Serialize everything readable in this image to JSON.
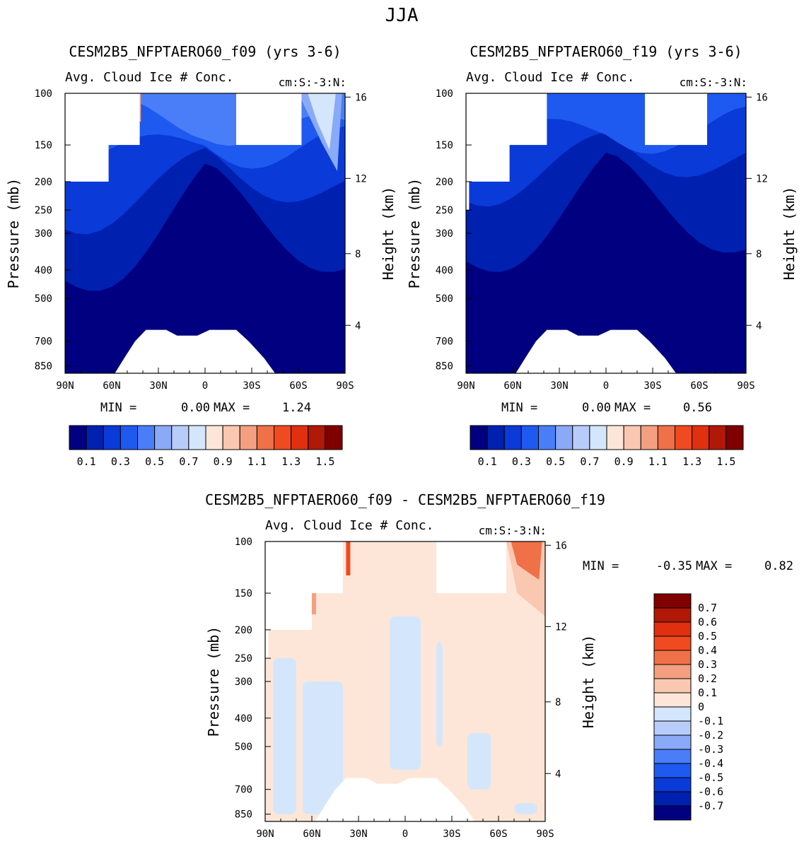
{
  "season": "JJA",
  "colors": {
    "blue_scale": [
      "#000080",
      "#0020b0",
      "#0a3ad8",
      "#1e5af0",
      "#4a7ef8",
      "#8aaaf8",
      "#b8ccfa",
      "#d4e6fc",
      "#fde6d8",
      "#fac8b0",
      "#f4a080",
      "#f07048",
      "#f04a20",
      "#e03010",
      "#b01808",
      "#800000"
    ],
    "diff_scale": [
      "#000080",
      "#0020b0",
      "#0a3ad8",
      "#1e5af0",
      "#4a7ef8",
      "#8aaaf8",
      "#b8ccfa",
      "#d4e6fc",
      "#fde6d8",
      "#fac8b0",
      "#f4a080",
      "#f07048",
      "#f04a20",
      "#e03010",
      "#b01808",
      "#800000"
    ]
  },
  "chart_data": [
    {
      "type": "heatmap",
      "title": "CESM2B5_NFPTAERO60_f09 (yrs 3-6)",
      "subtitle_left": "Avg. Cloud Ice # Conc.",
      "subtitle_right": "cm:S:-3:N:",
      "xlabel": "",
      "ylabel": "Pressure (mb)",
      "y2label": "Height (km)",
      "x_ticks": [
        "90N",
        "60N",
        "30N",
        "0",
        "30S",
        "60S",
        "90S"
      ],
      "y_ticks": [
        "100",
        "150",
        "200",
        "250",
        "300",
        "400",
        "500",
        "700",
        "850"
      ],
      "y2_ticks": [
        "16",
        "12",
        "8",
        "4"
      ],
      "min_label": "MIN =",
      "min_value": "0.00",
      "max_label": "MAX =",
      "max_value": "1.24",
      "levels": [
        "0.1",
        "0.3",
        "0.5",
        "0.7",
        "0.9",
        "1.1",
        "1.3",
        "1.5"
      ]
    },
    {
      "type": "heatmap",
      "title": "CESM2B5_NFPTAERO60_f19 (yrs 3-6)",
      "subtitle_left": "Avg. Cloud Ice # Conc.",
      "subtitle_right": "cm:S:-3:N:",
      "xlabel": "",
      "ylabel": "Pressure (mb)",
      "y2label": "Height (km)",
      "x_ticks": [
        "90N",
        "60N",
        "30N",
        "0",
        "30S",
        "60S",
        "90S"
      ],
      "y_ticks": [
        "100",
        "150",
        "200",
        "250",
        "300",
        "400",
        "500",
        "700",
        "850"
      ],
      "y2_ticks": [
        "16",
        "12",
        "8",
        "4"
      ],
      "min_label": "MIN =",
      "min_value": "0.00",
      "max_label": "MAX =",
      "max_value": "0.56",
      "levels": [
        "0.1",
        "0.3",
        "0.5",
        "0.7",
        "0.9",
        "1.1",
        "1.3",
        "1.5"
      ]
    },
    {
      "type": "heatmap",
      "title": "CESM2B5_NFPTAERO60_f09 - CESM2B5_NFPTAERO60_f19",
      "subtitle_left": "Avg. Cloud Ice # Conc.",
      "subtitle_right": "cm:S:-3:N:",
      "xlabel": "",
      "ylabel": "Pressure (mb)",
      "y2label": "Height (km)",
      "x_ticks": [
        "90N",
        "60N",
        "30N",
        "0",
        "30S",
        "60S",
        "90S"
      ],
      "y_ticks": [
        "100",
        "150",
        "200",
        "250",
        "300",
        "400",
        "500",
        "700",
        "850"
      ],
      "y2_ticks": [
        "16",
        "12",
        "8",
        "4"
      ],
      "min_label": "MIN =",
      "min_value": "-0.35",
      "max_label": "MAX =",
      "max_value": "0.82",
      "levels": [
        "0.7",
        "0.6",
        "0.5",
        "0.4",
        "0.3",
        "0.2",
        "0.1",
        "0",
        "-0.1",
        "-0.2",
        "-0.3",
        "-0.4",
        "-0.5",
        "-0.6",
        "-0.7"
      ]
    }
  ]
}
